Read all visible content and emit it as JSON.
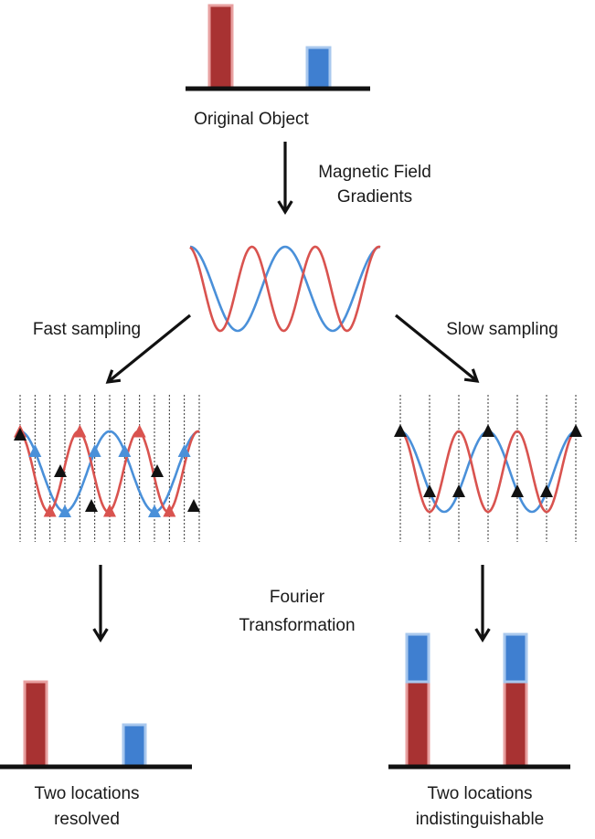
{
  "labels": {
    "original_object": "Original Object",
    "gradients_line1": "Magnetic Field",
    "gradients_line2": "Gradients",
    "fast_sampling": "Fast sampling",
    "slow_sampling": "Slow sampling",
    "fourier_line1": "Fourier",
    "fourier_line2": "Transformation",
    "resolved_line1": "Two locations",
    "resolved_line2": "resolved",
    "indist_line1": "Two locations",
    "indist_line2": "indistinguishable"
  },
  "colors": {
    "red_signal": "#d9534f",
    "blue_signal": "#4a90d9",
    "red_bar": "#a83232",
    "red_bar_outline": "#e8a0a0",
    "blue_bar": "#3f7fd0",
    "blue_bar_outline": "#a9c8ee",
    "baseline": "#111111",
    "arrow": "#111111",
    "sample_marker": "#111111",
    "sample_line": "#333333"
  }
}
